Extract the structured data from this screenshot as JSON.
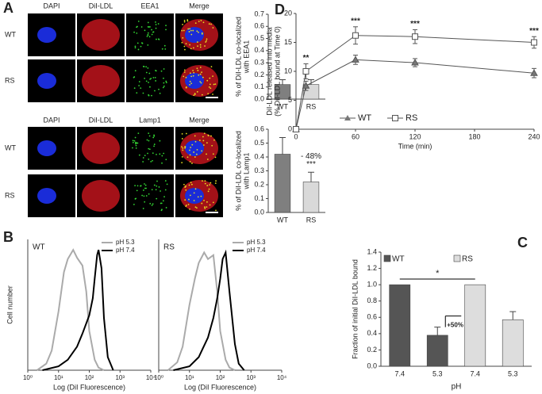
{
  "panels": {
    "labels": [
      "A",
      "B",
      "C",
      "D"
    ],
    "headers_top": [
      "DAPI",
      "DiI-LDL",
      "EEA1",
      "Merge"
    ],
    "headers_bottom": [
      "DAPI",
      "DiI-LDL",
      "Lamp1",
      "Merge"
    ],
    "rows": [
      "WT",
      "RS"
    ]
  },
  "chart_data": [
    {
      "type": "bar",
      "ylabel": [
        "% of DiI-LDL co-localized",
        "with EEA1"
      ],
      "categories": [
        "WT",
        "RS"
      ],
      "values": [
        0.12,
        0.12
      ],
      "errors": [
        0.04,
        0.04
      ],
      "colors": [
        "#7f7f7f",
        "#d9d9d9"
      ],
      "ylim": [
        0,
        0.7
      ],
      "yticks": [
        {
          "value": 0,
          "label": "0.0"
        },
        0.1,
        0.2,
        0.3,
        0.4,
        0.5,
        0.6,
        0.7
      ]
    },
    {
      "type": "bar",
      "ylabel": [
        "% of DiI-LDL co-localized",
        "with Lamp1"
      ],
      "categories": [
        "WT",
        "RS"
      ],
      "values": [
        0.42,
        0.22
      ],
      "errors": [
        0.12,
        0.07
      ],
      "colors": [
        "#7f7f7f",
        "#d9d9d9"
      ],
      "ylim": [
        0,
        0.6
      ],
      "yticks": [
        {
          "value": 0,
          "label": "0.0"
        },
        0.1,
        0.2,
        0.3,
        0.4,
        0.5,
        0.6
      ],
      "annotations": [
        "- 48%",
        "***"
      ]
    },
    {
      "type": "line",
      "xlabel": "Time (min)",
      "ylabel": [
        "DiI-LDL released into media",
        "(% DiI-LDL bound at Time 0)"
      ],
      "x": [
        0,
        10,
        60,
        120,
        240
      ],
      "series": [
        {
          "name": "WT",
          "color": "#555555",
          "marker": "triangle",
          "values": [
            0,
            7.5,
            12,
            11.5,
            9.7
          ],
          "errors": [
            null,
            0.8,
            0.8,
            0.7,
            0.8
          ]
        },
        {
          "name": "RS",
          "color": "#555555",
          "marker": "square",
          "values": [
            0,
            10,
            16.2,
            16,
            15
          ],
          "errors": [
            null,
            1.3,
            1.5,
            1.2,
            1.0
          ]
        }
      ],
      "xlim": [
        0,
        240
      ],
      "xticks": [
        0,
        60,
        120,
        180,
        240
      ],
      "ylim": [
        0,
        20
      ],
      "yticks": [
        0,
        5,
        10,
        15,
        20
      ],
      "annotations": [
        "**",
        "***",
        "***",
        "***"
      ]
    },
    {
      "type": "line",
      "label": "WT",
      "xlabel": "Log (DiI Fluorescence)",
      "ylabel": [
        "Cell number"
      ],
      "log_x": true,
      "series": [
        {
          "name": "pH 5.3",
          "color": "#aaaaaa",
          "x": [
            2,
            4,
            6,
            10,
            15,
            20,
            30,
            40,
            60,
            80,
            100,
            150,
            200,
            300
          ],
          "values": [
            0,
            5,
            15,
            45,
            75,
            85,
            92,
            86,
            80,
            60,
            30,
            8,
            2,
            0
          ]
        },
        {
          "name": "pH 7.4",
          "color": "#000000",
          "x": [
            3,
            10,
            20,
            40,
            60,
            100,
            130,
            150,
            180,
            200,
            250,
            300,
            400,
            600
          ],
          "values": [
            0,
            3,
            8,
            18,
            28,
            42,
            55,
            70,
            88,
            92,
            78,
            40,
            10,
            0
          ]
        }
      ],
      "xlim": [
        1,
        10000
      ],
      "xticks": [
        {
          "value": 1,
          "label": "10⁰"
        },
        {
          "value": 10,
          "label": "10¹"
        },
        {
          "value": 100,
          "label": "10²"
        },
        {
          "value": 1000,
          "label": "10³"
        },
        {
          "value": 10000,
          "label": "10⁴"
        }
      ],
      "ylim": [
        0,
        100
      ]
    },
    {
      "type": "line",
      "label": "RS",
      "xlabel": "Log (DiI Fluorescence)",
      "log_x": true,
      "series": [
        {
          "name": "pH 5.3",
          "color": "#aaaaaa",
          "x": [
            2,
            4,
            6,
            10,
            15,
            20,
            30,
            40,
            60,
            80,
            100,
            150,
            200,
            300
          ],
          "values": [
            0,
            6,
            18,
            50,
            70,
            82,
            90,
            85,
            88,
            60,
            30,
            8,
            2,
            0
          ]
        },
        {
          "name": "pH 7.4",
          "color": "#000000",
          "x": [
            3,
            10,
            20,
            40,
            60,
            80,
            100,
            120,
            150,
            200,
            300,
            400,
            600
          ],
          "values": [
            0,
            3,
            10,
            25,
            40,
            55,
            70,
            85,
            90,
            60,
            20,
            5,
            0
          ]
        }
      ],
      "xlim": [
        1,
        10000
      ],
      "xticks": [
        {
          "value": 1,
          "label": "10⁰"
        },
        {
          "value": 10,
          "label": "10¹"
        },
        {
          "value": 100,
          "label": "10²"
        },
        {
          "value": 1000,
          "label": "10³"
        },
        {
          "value": 10000,
          "label": "10⁴"
        }
      ],
      "ylim": [
        0,
        100
      ]
    },
    {
      "type": "bar",
      "xlabel": "pH",
      "ylabel": [
        "Fraction of initial DiI-LDL bound"
      ],
      "categories": [
        "7.4",
        "5.3",
        "7.4",
        "5.3"
      ],
      "values": [
        1.0,
        0.38,
        1.0,
        0.57
      ],
      "errors": [
        null,
        0.1,
        null,
        0.1
      ],
      "colors": [
        "#555555",
        "#555555",
        "#dddddd",
        "#dddddd"
      ],
      "groups": [
        {
          "name": "WT",
          "color": "#555555"
        },
        {
          "name": "RS",
          "color": "#dddddd"
        }
      ],
      "ylim": [
        0,
        1.4
      ],
      "yticks": [
        {
          "value": 0,
          "label": "0.0"
        },
        0.2,
        0.4,
        0.6,
        0.8,
        {
          "value": 1,
          "label": "1.0"
        },
        1.2,
        1.4
      ],
      "annotations": [
        "+50%",
        "*"
      ]
    }
  ]
}
